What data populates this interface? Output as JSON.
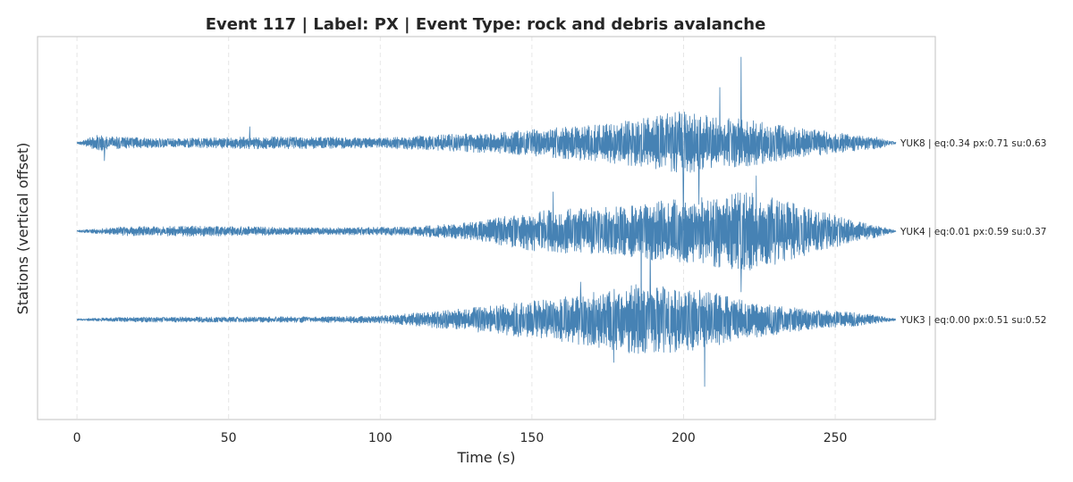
{
  "chart_data": {
    "type": "line",
    "title": "Event 117 | Label: PX | Event Type: rock and debris avalanche",
    "xlabel": "Time (s)",
    "ylabel": "Stations (vertical offset)",
    "xlim": [
      -13,
      283
    ],
    "xticks": [
      0,
      50,
      100,
      150,
      200,
      250
    ],
    "x_range": [
      0,
      270
    ],
    "grid": "x-dashed",
    "line_color": "#4682b4",
    "series": [
      {
        "name": "YUK8",
        "label": "YUK8 | eq:0.34 px:0.71 su:0.63",
        "envelope": [
          [
            0,
            0.01
          ],
          [
            8,
            0.1
          ],
          [
            10,
            0.07
          ],
          [
            30,
            0.05
          ],
          [
            60,
            0.07
          ],
          [
            100,
            0.06
          ],
          [
            120,
            0.09
          ],
          [
            140,
            0.12
          ],
          [
            160,
            0.18
          ],
          [
            175,
            0.22
          ],
          [
            190,
            0.3
          ],
          [
            200,
            0.36
          ],
          [
            210,
            0.3
          ],
          [
            220,
            0.27
          ],
          [
            235,
            0.18
          ],
          [
            250,
            0.12
          ],
          [
            265,
            0.06
          ],
          [
            270,
            0.01
          ]
        ],
        "spikes": [
          [
            9,
            0.2
          ],
          [
            200,
            0.98
          ],
          [
            205,
            0.69
          ],
          [
            219,
            0.96
          ],
          [
            212,
            0.62
          ],
          [
            57,
            0.18
          ]
        ]
      },
      {
        "name": "YUK4",
        "label": "YUK4 | eq:0.01 px:0.59 su:0.37",
        "envelope": [
          [
            0,
            0.01
          ],
          [
            15,
            0.05
          ],
          [
            40,
            0.06
          ],
          [
            80,
            0.04
          ],
          [
            110,
            0.05
          ],
          [
            130,
            0.1
          ],
          [
            150,
            0.22
          ],
          [
            165,
            0.26
          ],
          [
            180,
            0.28
          ],
          [
            195,
            0.35
          ],
          [
            210,
            0.4
          ],
          [
            220,
            0.45
          ],
          [
            230,
            0.38
          ],
          [
            245,
            0.22
          ],
          [
            260,
            0.1
          ],
          [
            270,
            0.01
          ]
        ],
        "spikes": [
          [
            219,
            0.68
          ],
          [
            224,
            0.62
          ],
          [
            157,
            0.44
          ],
          [
            186,
            0.55
          ]
        ]
      },
      {
        "name": "YUK3",
        "label": "YUK3 | eq:0.00 px:0.51 su:0.52",
        "envelope": [
          [
            0,
            0.01
          ],
          [
            20,
            0.03
          ],
          [
            60,
            0.03
          ],
          [
            100,
            0.04
          ],
          [
            120,
            0.1
          ],
          [
            140,
            0.17
          ],
          [
            160,
            0.25
          ],
          [
            175,
            0.33
          ],
          [
            185,
            0.4
          ],
          [
            195,
            0.38
          ],
          [
            205,
            0.34
          ],
          [
            220,
            0.22
          ],
          [
            240,
            0.12
          ],
          [
            260,
            0.07
          ],
          [
            270,
            0.01
          ]
        ],
        "spikes": [
          [
            189,
            0.92
          ],
          [
            207,
            0.75
          ],
          [
            186,
            0.88
          ],
          [
            166,
            0.42
          ],
          [
            177,
            0.48
          ]
        ]
      }
    ]
  }
}
